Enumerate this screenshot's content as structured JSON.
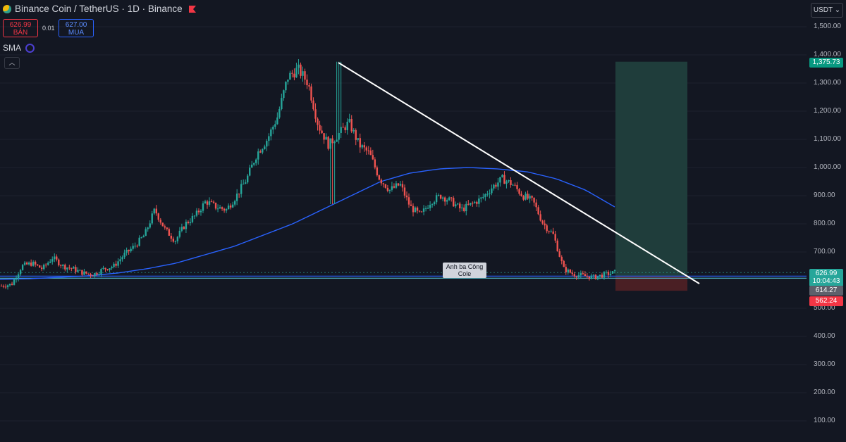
{
  "header": {
    "symbol_title": "Binance Coin / TetherUS · 1D · Binance",
    "sell": {
      "price": "626.99",
      "label": "BÁN"
    },
    "buy": {
      "price": "627.00",
      "label": "MUA"
    },
    "spread": "0.01",
    "indicator": "SMA",
    "currency": "USDT"
  },
  "price_scale": {
    "ticks": [
      "1,500.00",
      "1,400.00",
      "1,300.00",
      "1,200.00",
      "1,100.00",
      "1,000.00",
      "900.00",
      "800.00",
      "700.00",
      "500.00",
      "400.00",
      "300.00",
      "200.00",
      "100.00"
    ],
    "tags": {
      "target": "1,375.73",
      "current": "626.99",
      "countdown": "10:04:43",
      "entry": "614.27",
      "stop": "562.24"
    }
  },
  "drawing": {
    "note": "Anh ba Công Cole"
  },
  "colors": {
    "background": "#131722",
    "up": "#26a69a",
    "down": "#ef5350",
    "sma": "#2962ff",
    "trendline": "#ffffff",
    "profit_zone": "#1f3d3b",
    "loss_zone": "#4a1f24"
  },
  "chart_data": {
    "type": "candlestick",
    "symbol": "Binance Coin / TetherUS",
    "interval": "1D",
    "ylim": [
      50,
      1550
    ],
    "y_ticks": [
      100,
      200,
      300,
      400,
      500,
      700,
      800,
      900,
      1000,
      1100,
      1200,
      1300,
      1400,
      1500
    ],
    "price_path": [
      580,
      585,
      650,
      660,
      640,
      680,
      650,
      640,
      625,
      620,
      640,
      650,
      690,
      720,
      760,
      850,
      780,
      740,
      800,
      830,
      880,
      860,
      850,
      900,
      960,
      1050,
      1100,
      1180,
      1320,
      1350,
      1300,
      1150,
      1080,
      1120,
      1160,
      1080,
      1050,
      960,
      920,
      940,
      860,
      830,
      880,
      900,
      880,
      850,
      870,
      890,
      930,
      960,
      940,
      900,
      880,
      800,
      760,
      640,
      620,
      615,
      610,
      620,
      627
    ],
    "high": 1375.73,
    "long_position": {
      "target": 1375.73,
      "entry": 614.27,
      "stop": 562.24
    },
    "sma_path": [
      603,
      605,
      610,
      615,
      625,
      640,
      660,
      690,
      720,
      760,
      800,
      850,
      900,
      950,
      980,
      995,
      1000,
      995,
      985,
      960,
      920,
      860
    ]
  }
}
